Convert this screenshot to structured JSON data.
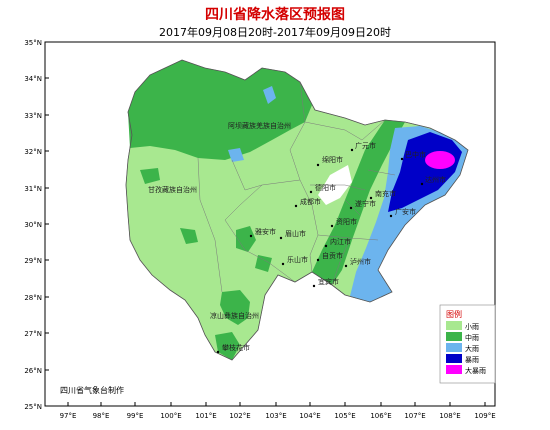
{
  "title": "四川省降水落区预报图",
  "subtitle": "2017年09月08日20时-2017年09月09日20时",
  "producer": "四川省气象台制作",
  "axes": {
    "lat_labels": [
      "35°N",
      "34°N",
      "33°N",
      "32°N",
      "31°N",
      "30°N",
      "29°N",
      "28°N",
      "27°N",
      "26°N",
      "25°N"
    ],
    "lon_labels": [
      "97°E",
      "98°E",
      "99°E",
      "100°E",
      "101°E",
      "102°E",
      "103°E",
      "104°E",
      "105°E",
      "106°E",
      "107°E",
      "108°E",
      "109°E"
    ]
  },
  "legend": {
    "title": "图例",
    "items": [
      {
        "label": "小雨",
        "color": "#a8e890"
      },
      {
        "label": "中雨",
        "color": "#3cb44a"
      },
      {
        "label": "大雨",
        "color": "#6cb4ee"
      },
      {
        "label": "暴雨",
        "color": "#0000c8"
      },
      {
        "label": "大暴雨",
        "color": "#ff00ff"
      }
    ]
  },
  "places": {
    "aba": "阿坝藏族羌族自治州",
    "ganzi": "甘孜藏族自治州",
    "liangshan": "凉山彝族自治州",
    "guangyuan": "广元市",
    "mianyang": "绵阳市",
    "bazhong": "巴中市",
    "deyang": "德阳市",
    "dazhou": "达州市",
    "chengdu": "成都市",
    "nanchong": "南充市",
    "guangan": "广安市",
    "suining": "遂宁市",
    "ziyang": "资阳市",
    "yaan": "雅安市",
    "meishan": "眉山市",
    "neijiang": "内江市",
    "leshan": "乐山市",
    "zigong": "自贡市",
    "yibin": "宜宾市",
    "luzhou": "泸州市",
    "panzhihua": "攀枝花市"
  }
}
